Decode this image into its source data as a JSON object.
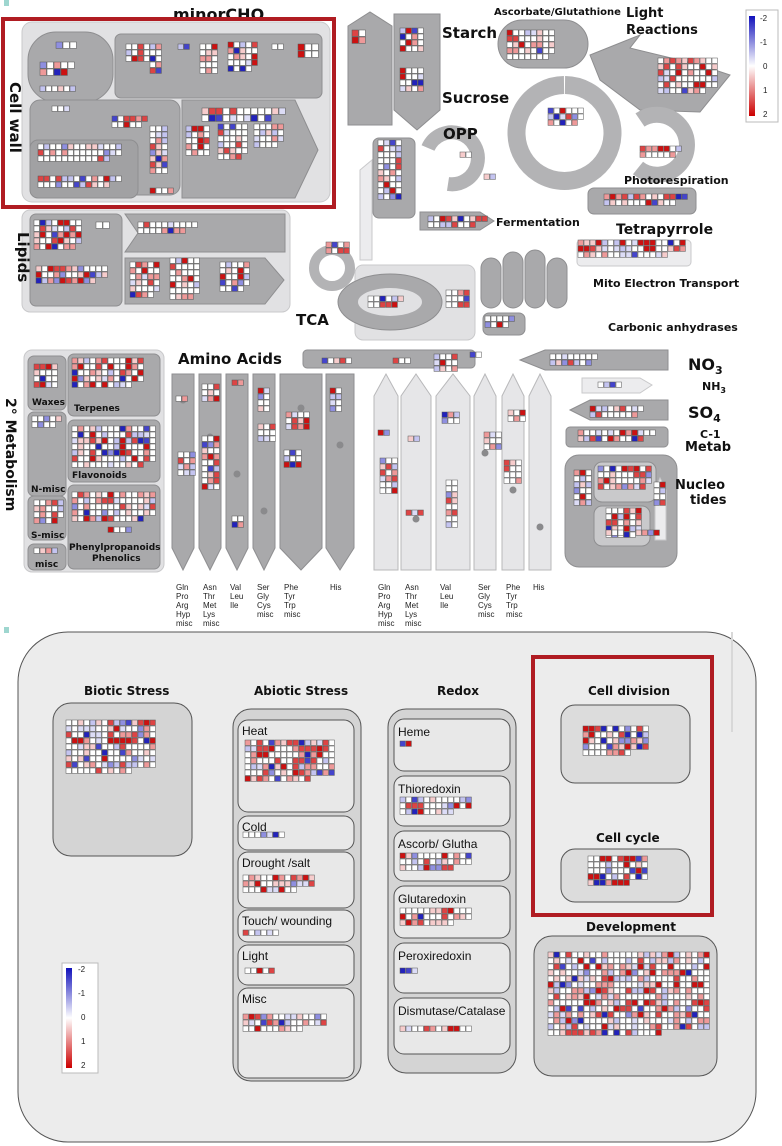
{
  "top_map": {
    "labels": {
      "minor_cho": "minorCHO",
      "cell_wall": "Cell wall",
      "starch": "Starch",
      "sucrose": "Sucrose",
      "opp": "OPP",
      "ascorbate": "Ascorbate/Glutathione",
      "light_reactions_1": "Light",
      "light_reactions_2": "Reactions",
      "photorespiration": "Photorespiration",
      "fermentation": "Fermentation",
      "tetrapyrrole": "Tetrapyrrole",
      "lipids": "Lipids",
      "tca": "TCA",
      "mito": "Mito Electron Transport",
      "carbonic": "Carbonic anhydrases",
      "amino_acids": "Amino Acids",
      "no3": "NO",
      "no3_sub": "3",
      "nh": "NH",
      "nh_sub": "3",
      "so4": "SO",
      "so4_sub": "4",
      "c1_1": "C-1",
      "c1_2": "Metab",
      "nucleo_1": "Nucleo",
      "nucleo_2": "tides",
      "metabolism": "2° Metabolism",
      "waxes": "Waxes",
      "terpenes": "Terpenes",
      "flavonoids": "Flavonoids",
      "n_misc": "N-misc",
      "s_misc": "S-misc",
      "misc": "misc",
      "phenylpropanoids_1": "Phenylpropanoids",
      "phenylpropanoids_2": "Phenolics"
    },
    "aa_columns": [
      [
        "Gln",
        "Pro",
        "Arg",
        "Hyp",
        "misc"
      ],
      [
        "Asn",
        "Thr",
        "Met",
        "Lys",
        "misc"
      ],
      [
        "Val",
        "Leu",
        "Ile"
      ],
      [
        "Ser",
        "Gly",
        "Cys",
        "misc"
      ],
      [
        "Phe",
        "Tyr",
        "Trp",
        "misc"
      ],
      [
        "His"
      ],
      [
        "Gln",
        "Pro",
        "Arg",
        "Hyp",
        "misc"
      ],
      [
        "Asn",
        "Thr",
        "Met",
        "Lys",
        "misc"
      ],
      [
        "Val",
        "Leu",
        "Ile"
      ],
      [
        "Ser",
        "Gly",
        "Cys",
        "misc"
      ],
      [
        "Phe",
        "Tyr",
        "Trp",
        "misc"
      ],
      [
        "His"
      ]
    ],
    "legend_ticks": [
      "-2",
      "-1",
      "0",
      "1",
      "2"
    ]
  },
  "bottom_map": {
    "titles": {
      "biotic": "Biotic Stress",
      "abiotic": "Abiotic Stress",
      "redox": "Redox",
      "cell_division": "Cell division",
      "cell_cycle": "Cell cycle",
      "development": "Development"
    },
    "abiotic_boxes": [
      "Heat",
      "Cold",
      "Drought /salt",
      "Touch/ wounding",
      "Light",
      "Misc"
    ],
    "redox_boxes": [
      "Heme",
      "Thioredoxin",
      "Ascorb/ Glutha",
      "Glutaredoxin",
      "Peroxiredoxin",
      "Dismutase/Catalase"
    ],
    "legend_ticks": [
      "-2",
      "-1",
      "0",
      "1",
      "2"
    ]
  },
  "colors": {
    "highlight": "#b01c22",
    "panel_gray": "#a8a8aa",
    "panel_light": "#e4e4e6",
    "up_blue": "#1a1acc",
    "down_red": "#cc1111"
  }
}
